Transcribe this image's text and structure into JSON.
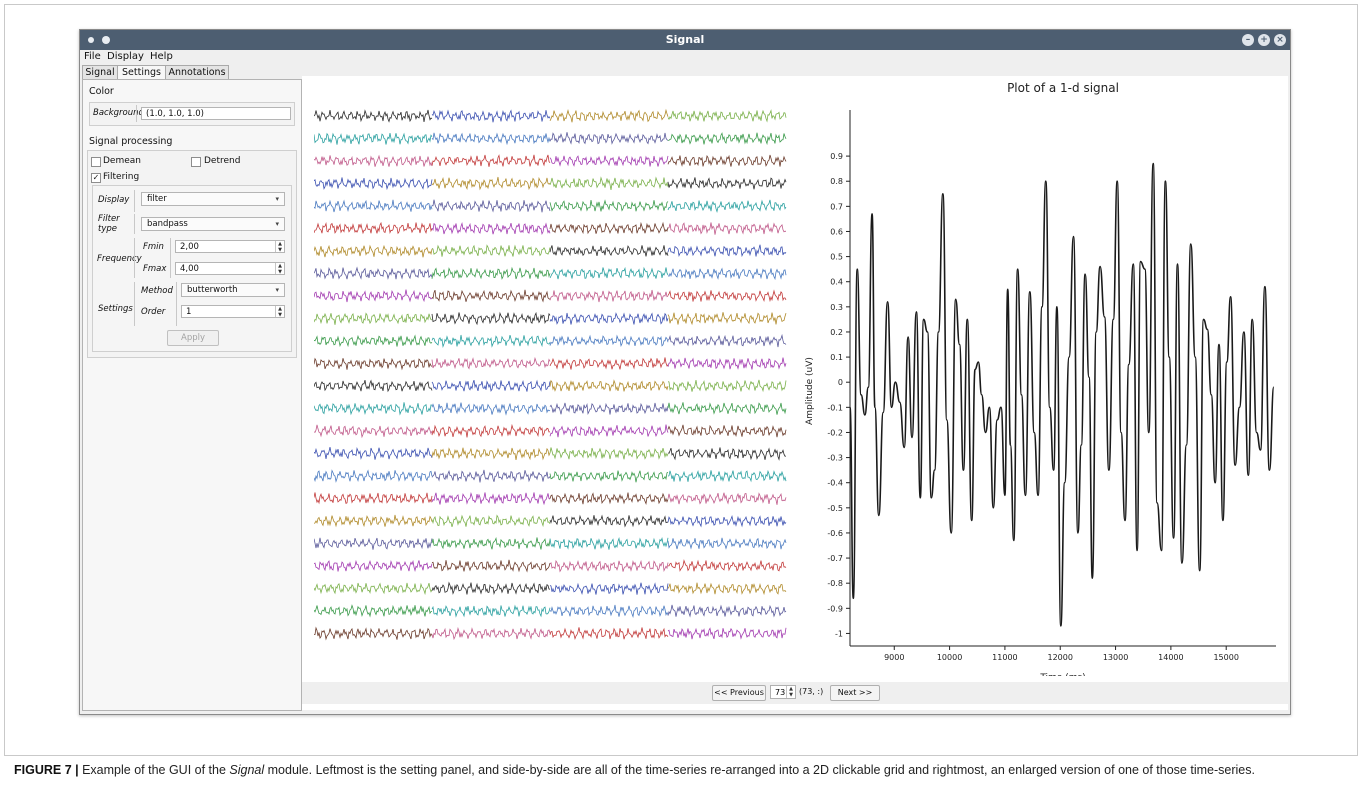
{
  "window": {
    "title": "Signal"
  },
  "menu": [
    "File",
    "Display",
    "Help"
  ],
  "tabs": [
    "Signal",
    "Settings",
    "Annotations"
  ],
  "panel": {
    "color_section": "Color",
    "background_label": "Background",
    "background_value": "(1.0, 1.0, 1.0)",
    "signal_section": "Signal processing",
    "demean": {
      "label": "Demean",
      "checked": false
    },
    "detrend": {
      "label": "Detrend",
      "checked": false
    },
    "filtering": {
      "label": "Filtering",
      "checked": true
    },
    "display_label": "Display",
    "display_value": "filter",
    "filter_type_label": "Filter type",
    "filter_type_value": "bandpass",
    "frequency_label": "Frequency",
    "fmin_label": "Fmin",
    "fmin_value": "2,00",
    "fmax_label": "Fmax",
    "fmax_value": "4,00",
    "settings_label": "Settings",
    "method_label": "Method",
    "method_value": "butterworth",
    "order_label": "Order",
    "order_value": "1",
    "apply_label": "Apply"
  },
  "navigation": {
    "prev_label": "<< Previous",
    "index_value": "73",
    "index_text": "(73, :)",
    "next_label": "Next >>"
  },
  "grid": {
    "rows": 24,
    "columns": 4,
    "palette": [
      "#2a2a2a",
      "#c23a3a",
      "#3a9a4a",
      "#3a4fb0",
      "#a23ab0",
      "#2aa0a0",
      "#b08a2a",
      "#6a3a2a",
      "#4a7ac0",
      "#7ab04a",
      "#c05a8a",
      "#5a5a9a"
    ]
  },
  "chart_data": {
    "type": "line",
    "title": "Plot of a 1-d signal",
    "xlabel": "Time (ms)",
    "ylabel": "Amplitude (uV)",
    "xlim": [
      8200,
      15900
    ],
    "ylim": [
      -1.05,
      0.98
    ],
    "xticks": [
      9000,
      10000,
      11000,
      12000,
      13000,
      14000,
      15000
    ],
    "yticks": [
      0.9,
      0.8,
      0.7,
      0.6,
      0.5,
      0.4,
      0.3,
      0.2,
      0.1,
      0,
      -0.1,
      -0.2,
      -0.3,
      -0.4,
      -0.5,
      -0.6,
      -0.7,
      -0.8,
      -0.9,
      -1
    ],
    "x": [
      8200,
      8260,
      8330,
      8400,
      8470,
      8530,
      8600,
      8650,
      8720,
      8800,
      8880,
      8950,
      9020,
      9100,
      9180,
      9250,
      9320,
      9400,
      9470,
      9530,
      9600,
      9670,
      9730,
      9800,
      9880,
      9950,
      10030,
      10110,
      10180,
      10250,
      10320,
      10400,
      10460,
      10520,
      10580,
      10650,
      10720,
      10790,
      10860,
      10930,
      11000,
      11050,
      11100,
      11160,
      11230,
      11300,
      11370,
      11450,
      11530,
      11600,
      11670,
      11740,
      11810,
      11880,
      11940,
      12010,
      12080,
      12160,
      12240,
      12320,
      12380,
      12450,
      12520,
      12580,
      12650,
      12720,
      12800,
      12880,
      12960,
      13030,
      13100,
      13170,
      13240,
      13320,
      13390,
      13450,
      13530,
      13600,
      13680,
      13750,
      13830,
      13900,
      13970,
      14050,
      14120,
      14200,
      14280,
      14360,
      14440,
      14520,
      14590,
      14660,
      14730,
      14800,
      14870,
      14940,
      15010,
      15080,
      15160,
      15240,
      15320,
      15400,
      15470,
      15550,
      15620,
      15700,
      15780,
      15860
    ],
    "y": [
      -0.1,
      -0.86,
      0.45,
      -0.05,
      -0.13,
      -0.02,
      0.67,
      -0.1,
      -0.53,
      -0.12,
      0.32,
      -0.1,
      0.0,
      -0.08,
      -0.26,
      0.18,
      -0.22,
      0.28,
      -0.46,
      0.25,
      0.2,
      -0.46,
      -0.35,
      0.2,
      0.75,
      -0.15,
      -0.6,
      0.33,
      0.15,
      -0.35,
      0.25,
      -0.55,
      0.05,
      0.08,
      -0.05,
      -0.2,
      -0.1,
      -0.5,
      -0.15,
      -0.1,
      -0.45,
      0.37,
      -0.25,
      -0.63,
      0.45,
      -0.05,
      -0.45,
      0.36,
      -0.2,
      -0.45,
      0.3,
      0.8,
      -0.1,
      -0.35,
      0.3,
      -0.97,
      -0.4,
      0.1,
      0.58,
      -0.6,
      -0.25,
      0.43,
      0.02,
      -0.78,
      0.2,
      0.46,
      0.26,
      -0.35,
      0.25,
      0.8,
      -0.2,
      -0.55,
      0.07,
      0.47,
      -0.67,
      0.48,
      0.45,
      -0.2,
      0.87,
      -0.48,
      -0.67,
      0.8,
      0.1,
      -0.62,
      0.47,
      -0.72,
      -0.25,
      0.55,
      0.1,
      -0.75,
      0.25,
      0.21,
      -0.05,
      -0.4,
      0.15,
      -0.55,
      0.08,
      0.34,
      -0.33,
      -0.1,
      0.2,
      -0.37,
      0.25,
      -0.2,
      -0.27,
      0.38,
      -0.35,
      -0.02
    ]
  },
  "caption": {
    "label": "FIGURE 7 |",
    "text_before": " Example of the GUI of the ",
    "module": "Signal",
    "text_after": " module. Leftmost is the setting panel, and side-by-side are all of the time-series re-arranged into a 2D clickable grid and rightmost, an enlarged version of one of those time-series."
  }
}
